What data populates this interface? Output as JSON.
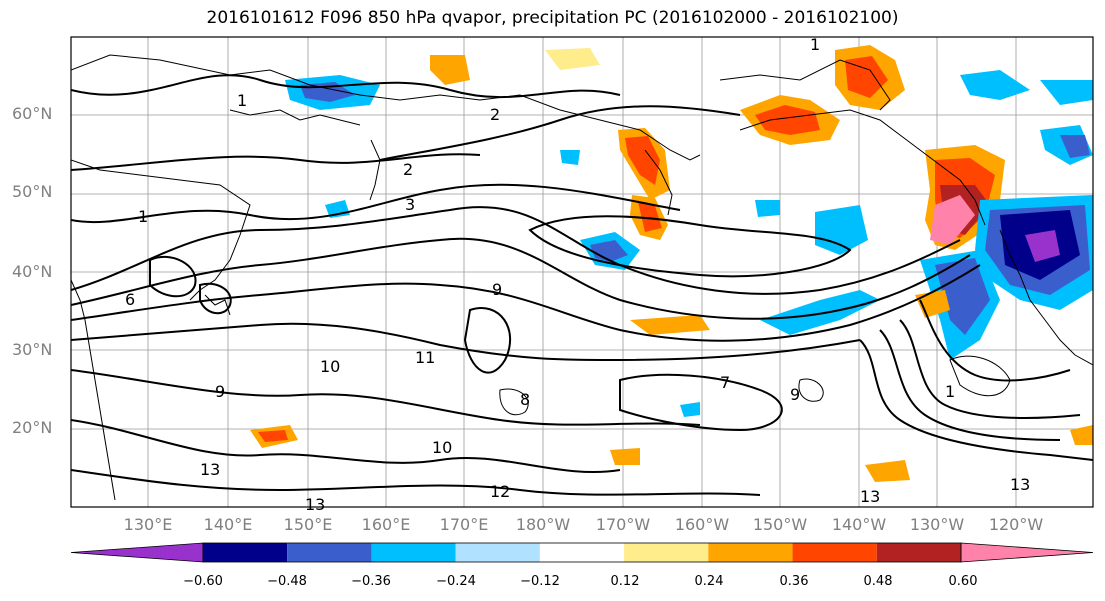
{
  "title": "2016101612 F096 850 hPa qvapor, precipitation PC (2016102000 - 2016102100)",
  "lat_labels": [
    "60°N",
    "50°N",
    "40°N",
    "30°N",
    "20°N"
  ],
  "lon_labels": [
    "130°E",
    "140°E",
    "150°E",
    "160°E",
    "170°E",
    "180°W",
    "170°W",
    "160°W",
    "150°W",
    "140°W",
    "130°W",
    "120°W"
  ],
  "colorbar": {
    "ticks": [
      "−0.60",
      "−0.48",
      "−0.36",
      "−0.24",
      "−0.12",
      "0.12",
      "0.24",
      "0.36",
      "0.48",
      "0.60"
    ],
    "colors": [
      "#9932cc",
      "#00008b",
      "#3a5fcd",
      "#00bfff",
      "#b0e2ff",
      "#ffffff",
      "#ffec8b",
      "#ffa500",
      "#ff4500",
      "#b22222",
      "#ff82ab"
    ]
  },
  "contour_labels": [
    "1",
    "2",
    "3",
    "9",
    "10",
    "11",
    "12",
    "13",
    "8",
    "6",
    "7"
  ],
  "map_elements": {
    "land": "coastline outlines",
    "contours": "qvapor black contour lines",
    "shading": "precipitation PC filled colors"
  }
}
